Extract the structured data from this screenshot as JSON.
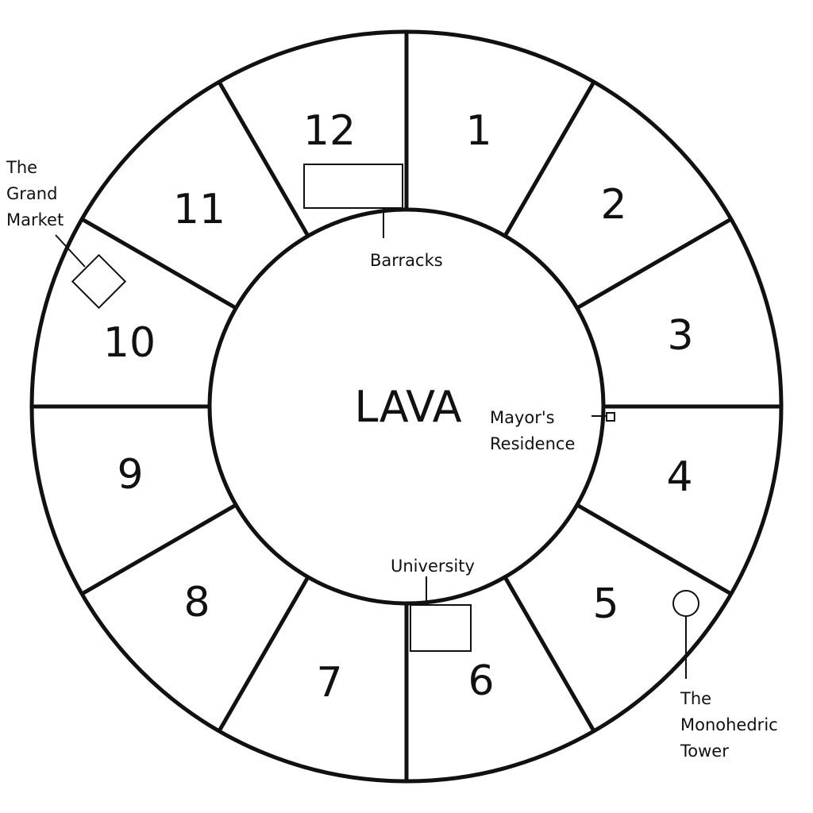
{
  "map": {
    "center_label": "LAVA",
    "districts": [
      "1",
      "2",
      "3",
      "4",
      "5",
      "6",
      "7",
      "8",
      "9",
      "10",
      "11",
      "12"
    ],
    "landmarks": {
      "barracks": "Barracks",
      "mayors_residence": [
        "Mayor's",
        "Residence"
      ],
      "university": "University",
      "grand_market": [
        "The",
        "Grand",
        "Market"
      ],
      "monohedric_tower": [
        "The",
        "Monohedric",
        "Tower"
      ]
    }
  },
  "colors": {
    "stroke": "#111111",
    "background": "#ffffff"
  }
}
